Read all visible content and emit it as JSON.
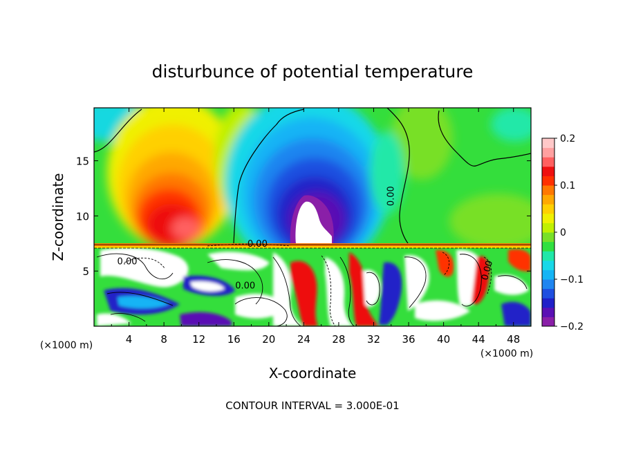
{
  "chart_data": {
    "type": "heatmap",
    "title": "disturbunce of potential temperature",
    "xlabel": "X-coordinate",
    "ylabel": "Z-coordinate",
    "x_unit_left": "(×1000 m)",
    "x_unit_right": "(×1000 m)",
    "xlim": [
      0,
      50
    ],
    "ylim": [
      0,
      19.8
    ],
    "x_ticks": [
      4,
      8,
      12,
      16,
      20,
      24,
      28,
      32,
      36,
      40,
      44,
      48
    ],
    "y_ticks": [
      5,
      10,
      15
    ],
    "colorbar": {
      "range": [
        -0.2,
        0.2
      ],
      "ticks": [
        {
          "value": 0.2,
          "label": "0.2"
        },
        {
          "value": 0.1,
          "label": "0.1"
        },
        {
          "value": 0.0,
          "label": "0"
        },
        {
          "value": -0.1,
          "label": "−0.1"
        },
        {
          "value": -0.2,
          "label": "−0.2"
        }
      ],
      "colors": [
        "#8a1fa8",
        "#5a10b4",
        "#2020c8",
        "#1f4fe0",
        "#1f85f0",
        "#14b4f5",
        "#18d8e8",
        "#20e8a8",
        "#30e040",
        "#78e028",
        "#c0f000",
        "#f0f000",
        "#ffd000",
        "#ffa800",
        "#ff7800",
        "#ff3000",
        "#ee1010",
        "#ff6060",
        "#ffa0a0",
        "#ffc8c8"
      ]
    },
    "contour_labels": [
      {
        "text": "0.00",
        "x": 34.3,
        "y": 11.8,
        "rotate": -90
      },
      {
        "text": "0.00",
        "x": 18.7,
        "y": 7.2
      },
      {
        "text": "0.00",
        "x": 3.8,
        "y": 5.6
      },
      {
        "text": "0.00",
        "x": 17.3,
        "y": 3.4
      },
      {
        "text": "0.00",
        "x": 45.3,
        "y": 5.0,
        "rotate": -75
      }
    ],
    "features": [
      {
        "name": "warm anomaly",
        "x": 8.5,
        "z": 10.5,
        "value": 0.16
      },
      {
        "name": "cold anomaly",
        "x": 24.5,
        "z": 10.5,
        "value": -0.19
      }
    ]
  },
  "footer": "CONTOUR INTERVAL = 3.000E-01"
}
